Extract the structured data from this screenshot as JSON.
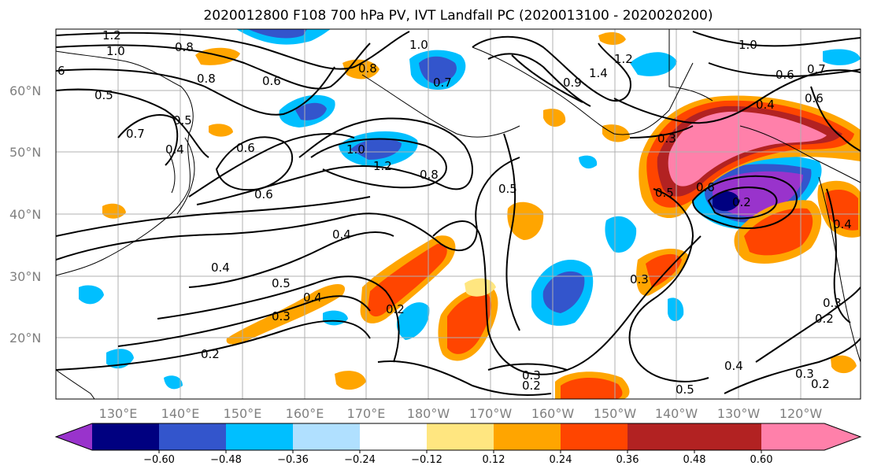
{
  "title": "2020012800 F108 700 hPa PV, IVT Landfall PC (2020013100 - 2020020200)",
  "map": {
    "lat_labels": [
      "60°N",
      "50°N",
      "40°N",
      "30°N",
      "20°N"
    ],
    "lon_labels": [
      "130°E",
      "140°E",
      "150°E",
      "160°E",
      "170°E",
      "180°W",
      "170°W",
      "160°W",
      "150°W",
      "140°W",
      "130°W",
      "120°W"
    ],
    "contour_labels": [
      "1.2",
      "1.0",
      "0.8",
      "0.8",
      "0.6",
      "0.5",
      "0.7",
      "0.5",
      "0.4",
      "0.6",
      "0.6",
      "1.0",
      "1.2",
      "0.8",
      "0.5",
      "0.4",
      "0.4",
      "0.5",
      "0.3",
      "0.4",
      "0.2",
      "0.2",
      "1.0",
      "0.7",
      "0.8",
      "1.4",
      "1.2",
      "0.9",
      "0.3",
      "0.5",
      "0.6",
      "0.2",
      "0.4",
      "1.0",
      "0.6",
      "0.7",
      "0.6",
      "0.3",
      "0.3",
      "0.2",
      "0.4",
      "0.5",
      "0.3",
      "0.2",
      "0.3",
      "0.2",
      "6",
      "0.4"
    ]
  },
  "colorbar": {
    "tick_labels": [
      "−0.60",
      "−0.48",
      "−0.36",
      "−0.24",
      "−0.12",
      "0.12",
      "0.24",
      "0.36",
      "0.48",
      "0.60"
    ],
    "colors": [
      "#9933cc",
      "#000080",
      "#3355cc",
      "#00bfff",
      "#b0e0ff",
      "#ffffff",
      "#ffe680",
      "#ffa500",
      "#ff4500",
      "#b22222",
      "#ff80aa"
    ]
  }
}
